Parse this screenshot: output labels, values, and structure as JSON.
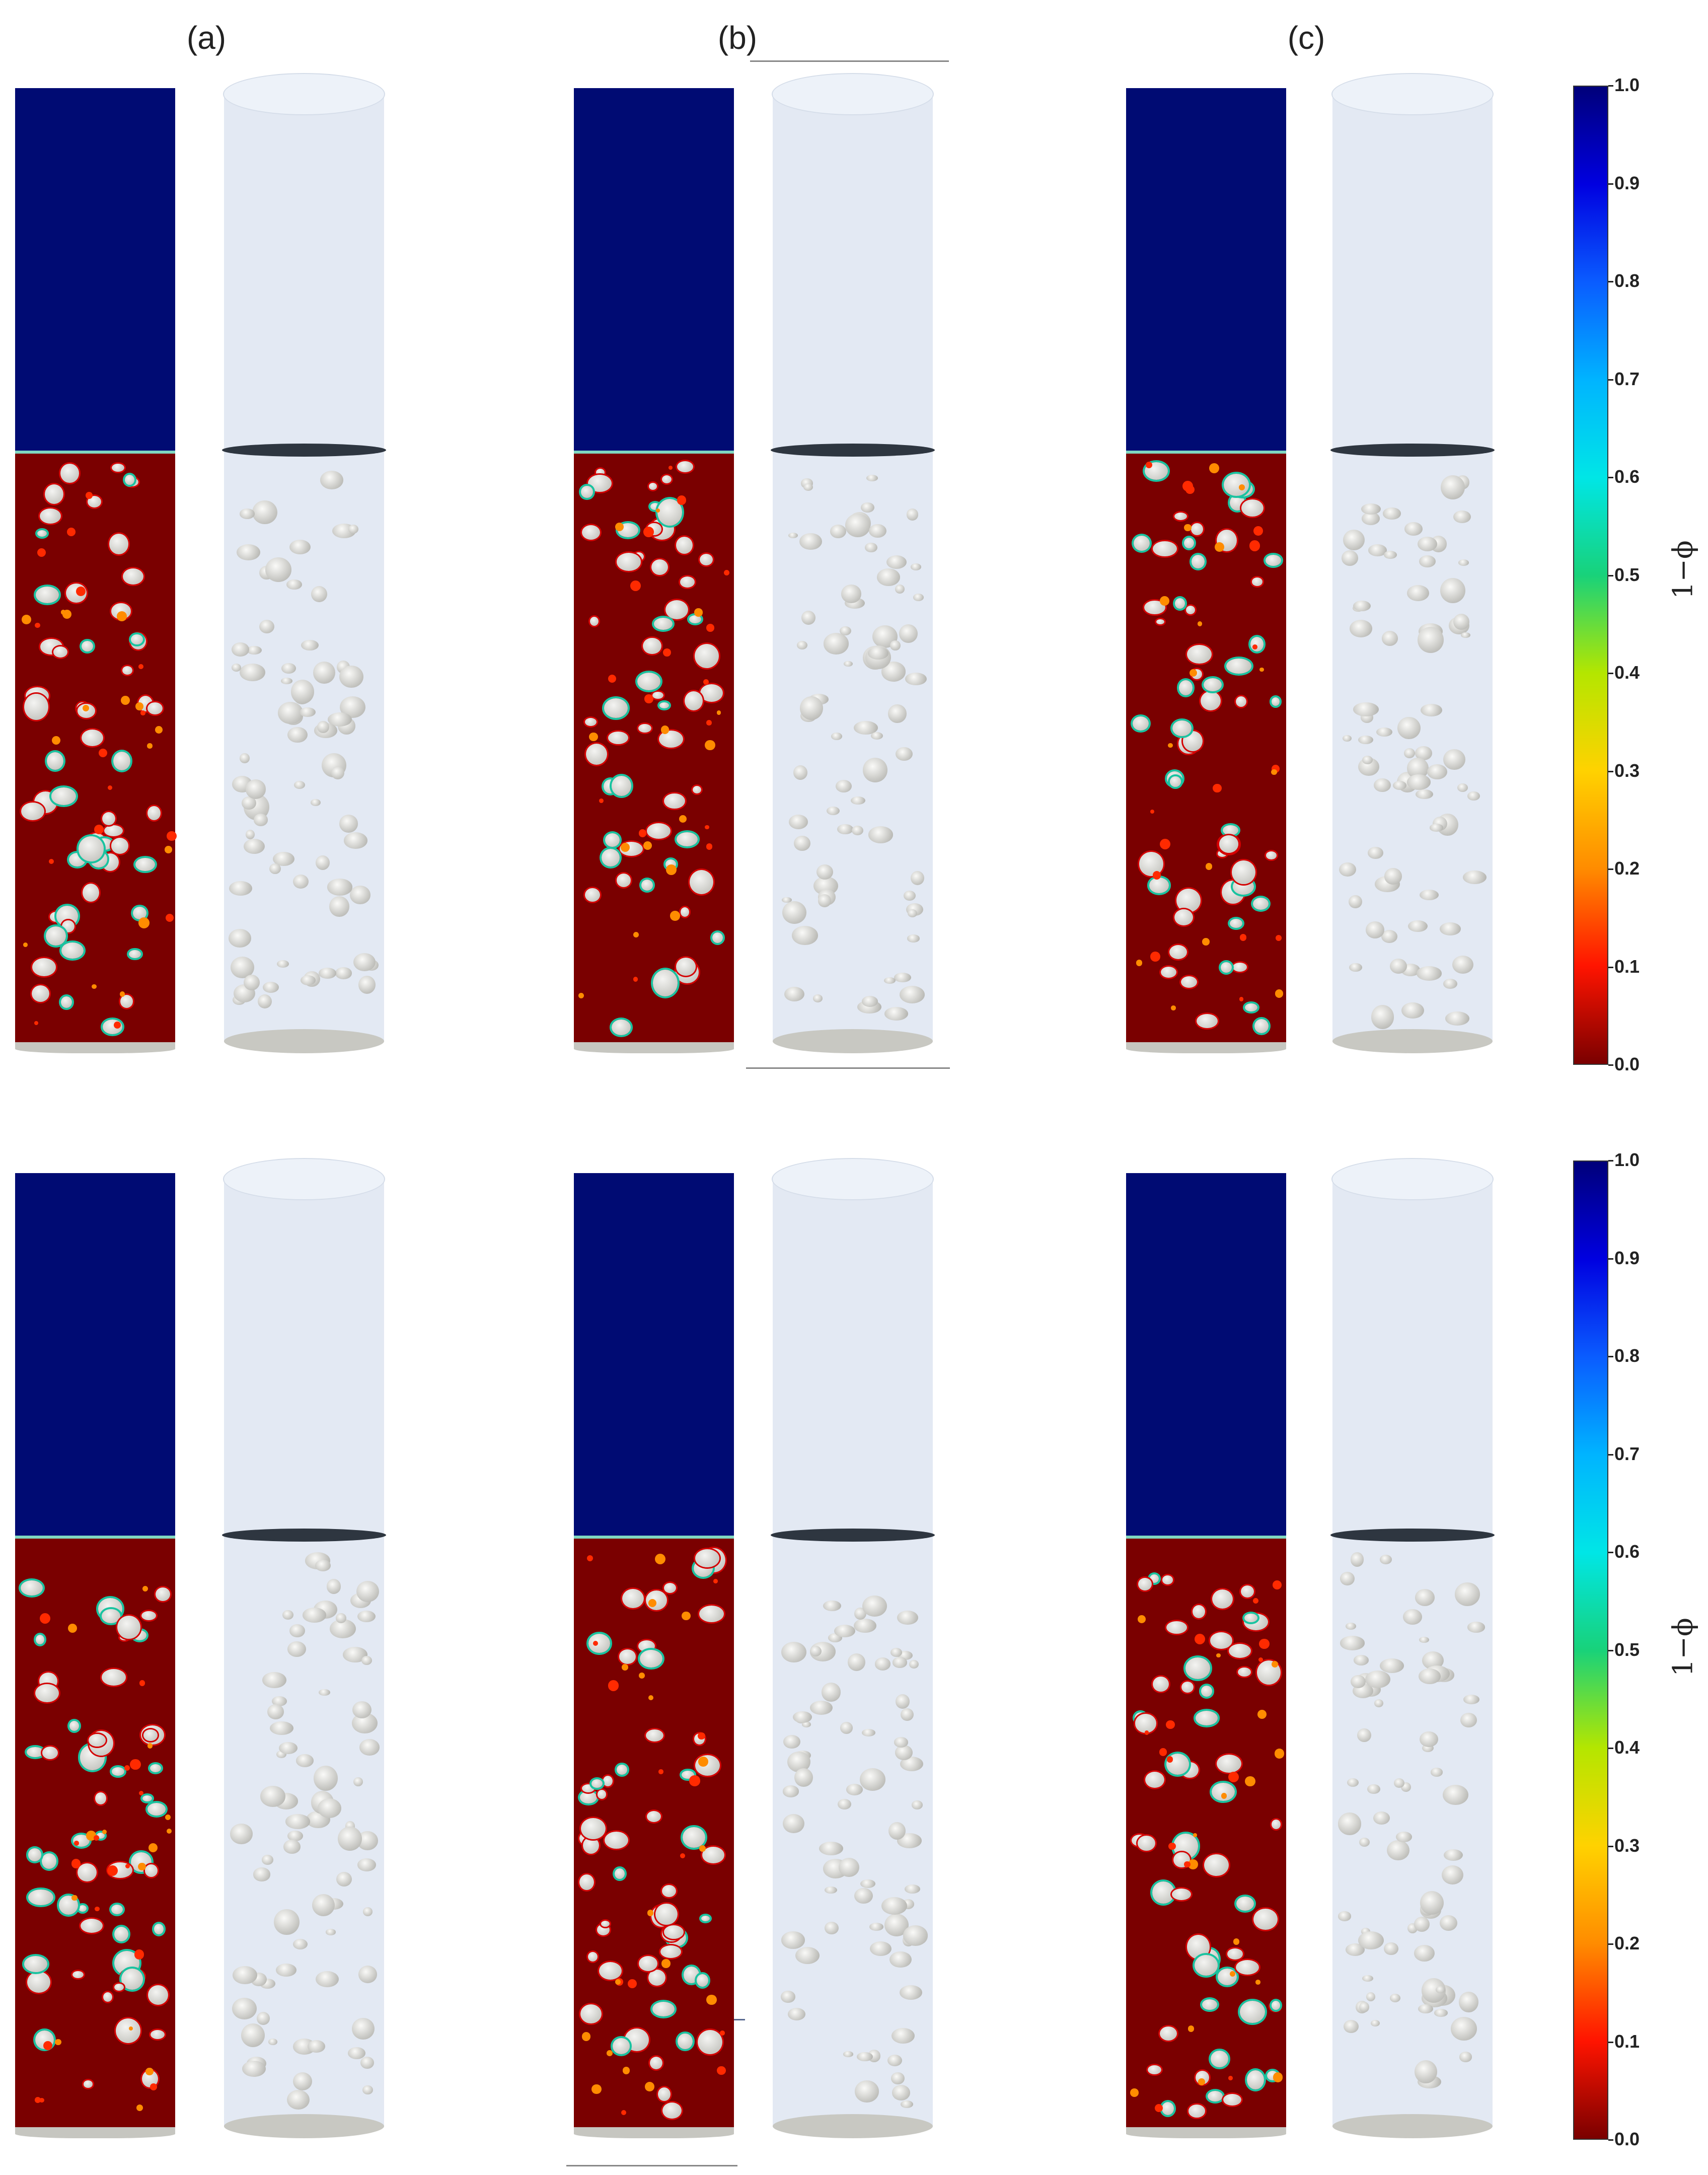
{
  "panels": {
    "a": "(a)",
    "b": "(b)",
    "c": "(c)"
  },
  "colorbar": {
    "title": "1−ϕ",
    "ticks": [
      "1.0",
      "0.9",
      "0.8",
      "0.7",
      "0.6",
      "0.5",
      "0.4",
      "0.3",
      "0.2",
      "0.1",
      "0.0"
    ],
    "colormap": [
      "#00007a",
      "#0000e0",
      "#0a5cff",
      "#00b4ff",
      "#00e6e6",
      "#18d27a",
      "#b4e600",
      "#ffd200",
      "#ff8c00",
      "#ff1400",
      "#7a0000"
    ]
  },
  "colors": {
    "gas_phase": "#000b73",
    "liquid_phase": "#7a0000",
    "bubble_surface": "#d8d8d4",
    "tube": "#e3e9f3"
  }
}
